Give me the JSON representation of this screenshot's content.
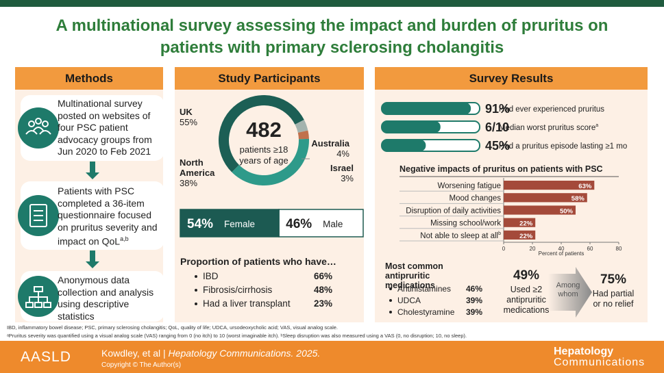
{
  "title": "A multinational survey assessing the impact and burden of pruritus on patients with primary sclerosing cholangitis",
  "methods": {
    "heading": "Methods",
    "steps": [
      {
        "text": "Multinational survey posted on websites of four PSC patient advocacy groups from Jun 2020 to Feb 2021"
      },
      {
        "text": "Patients with PSC completed a 36-item questionnaire focused on pruritus severity and impact on QoL",
        "sup": "a,b"
      },
      {
        "text": "Anonymous data collection and analysis using descriptive statistics"
      }
    ]
  },
  "participants": {
    "heading": "Study Participants",
    "total": 482,
    "total_caption": "patients ≥18 years of age",
    "regions": [
      {
        "name": "UK",
        "value": 55,
        "label": "55%",
        "color": "#1c5f55"
      },
      {
        "name": "Australia",
        "value": 4,
        "label": "4%",
        "color": "#a3b3ae"
      },
      {
        "name": "Israel",
        "value": 3,
        "label": "3%",
        "color": "#c0714d"
      },
      {
        "name": "North America",
        "value": 38,
        "label": "38%",
        "color": "#2e9a8a"
      }
    ],
    "sex": [
      {
        "name": "Female",
        "value": 54,
        "label": "54%"
      },
      {
        "name": "Male",
        "value": 46,
        "label": "46%"
      }
    ],
    "proportion_heading": "Proportion of patients who have…",
    "proportions": [
      {
        "name": "IBD",
        "value": 66,
        "label": "66%"
      },
      {
        "name": "Fibrosis/cirrhosis",
        "value": 48,
        "label": "48%"
      },
      {
        "name": "Had a liver transplant",
        "value": 23,
        "label": "23%"
      }
    ]
  },
  "results": {
    "heading": "Survey Results",
    "stats": [
      {
        "value": 91,
        "scale": 100,
        "label": "91%",
        "text": "Had ever experienced pruritus"
      },
      {
        "value": 6,
        "scale": 10,
        "label": "6/10",
        "text": "Median worst pruritus score",
        "sup": "a"
      },
      {
        "value": 45,
        "scale": 100,
        "label": "45%",
        "text": "Had a pruritus episode lasting ≥1 mo"
      }
    ],
    "chart_data": {
      "type": "bar",
      "orientation": "horizontal",
      "title": "Negative impacts of pruritus on patients with PSC",
      "categories": [
        "Worsening fatigue",
        "Mood changes",
        "Disruption of daily activities",
        "Missing school/work",
        "Not able to sleep at all"
      ],
      "category_sups": [
        null,
        null,
        null,
        null,
        "b"
      ],
      "values": [
        63,
        58,
        50,
        22,
        22
      ],
      "value_labels": [
        "63%",
        "58%",
        "50%",
        "22%",
        "22%"
      ],
      "color": "#a44a3a",
      "xlim": [
        0,
        80
      ],
      "xticks": [
        0,
        20,
        40,
        60,
        80
      ],
      "xlabel": "Percent of patients"
    },
    "medications_heading": "Most common antipruritic medications",
    "medications": [
      {
        "name": "Antihistamines",
        "value": 46,
        "label": "46%"
      },
      {
        "name": "UDCA",
        "value": 39,
        "label": "39%"
      },
      {
        "name": "Cholestyramine",
        "value": 39,
        "label": "39%"
      }
    ],
    "multi_use": {
      "value": 49,
      "label": "49%",
      "text": "Used ≥2 antipruritic medications"
    },
    "connector": "Among whom",
    "relief": {
      "value": 75,
      "label": "75%",
      "text": "Had partial or no relief"
    }
  },
  "footnotes": [
    "IBD, inflammatory bowel disease; PSC, primary sclerosing cholangitis; QoL, quality of life; UDCA, ursodeoxycholic acid; VAS, visual analog scale.",
    "ᵃPruritus severity was quantified using a visual analog scale (VAS) ranging from 0 (no itch) to 10 (worst imaginable itch). ᵇSleep disruption was also measured using a VAS (0, no disruption; 10, no sleep)."
  ],
  "footer": {
    "logo": "AASLD",
    "authors": "Kowdley, et al",
    "separator": "|",
    "journal": "Hepatology Communications. 2025.",
    "copyright": "Copyright © The Author(s)",
    "brand_line1": "Hepatology",
    "brand_line2": "Communications"
  }
}
